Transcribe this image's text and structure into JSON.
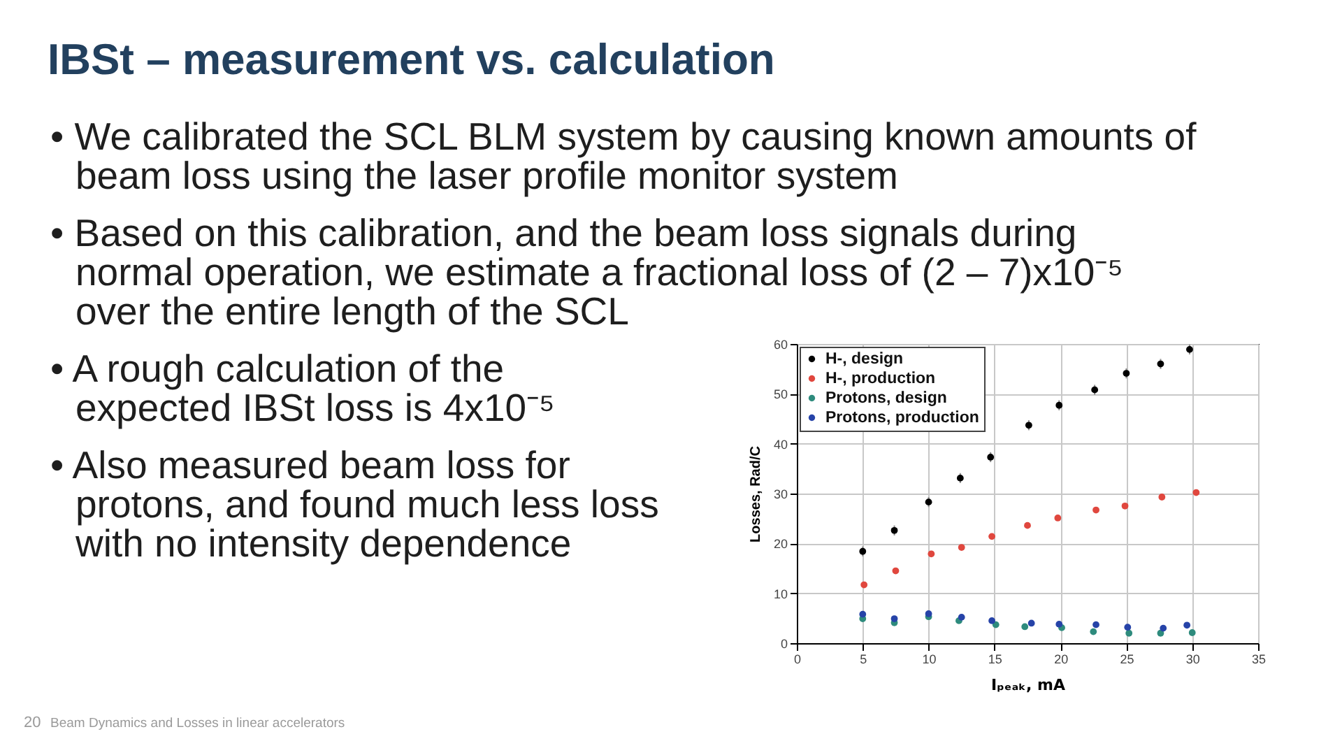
{
  "chart_data": {
    "type": "scatter",
    "title": "IBSt – measurement vs. calculation",
    "xlabel": "Iₚₑₐₖ, mA",
    "ylabel": "Losses, Rad/C",
    "xlim": [
      0,
      35
    ],
    "xticks": [
      0,
      5,
      10,
      15,
      20,
      25,
      30,
      35
    ],
    "ylim": [
      0,
      60
    ],
    "yticks": [
      0,
      10,
      20,
      30,
      40,
      50,
      60
    ],
    "grid": true,
    "legend": "top left",
    "marker": "circle",
    "series": [
      {
        "name": "H-, design",
        "color": "#000000",
        "x": [
          5.0,
          7.4,
          10.0,
          12.4,
          14.7,
          17.6,
          19.9,
          22.6,
          25.0,
          27.6,
          29.8
        ],
        "values": [
          18.4,
          22.6,
          28.3,
          33.1,
          37.3,
          43.7,
          47.7,
          50.8,
          54.1,
          56.0,
          58.9
        ],
        "errors": [
          1,
          1,
          1,
          1,
          1,
          1,
          1,
          1,
          1,
          1,
          1
        ]
      },
      {
        "name": "H-, production",
        "color": "#e0473e",
        "x": [
          5.1,
          7.5,
          10.2,
          12.5,
          14.8,
          17.5,
          19.8,
          22.7,
          24.9,
          27.7,
          30.3
        ],
        "values": [
          11.7,
          14.5,
          17.9,
          19.2,
          21.4,
          23.6,
          25.1,
          26.7,
          27.5,
          29.3,
          30.2
        ]
      },
      {
        "name": "Protons, design",
        "color": "#2e8b7d",
        "x": [
          5.0,
          7.4,
          10.0,
          12.3,
          15.1,
          17.3,
          20.1,
          22.5,
          25.2,
          27.6,
          30.0
        ],
        "values": [
          4.9,
          4.1,
          5.3,
          4.5,
          3.7,
          3.3,
          3.1,
          2.3,
          2.0,
          2.0,
          2.1
        ]
      },
      {
        "name": "Protons, production",
        "color": "#2643a8",
        "x": [
          5.0,
          7.4,
          10.0,
          12.5,
          14.8,
          17.8,
          19.9,
          22.7,
          25.1,
          27.8,
          29.6
        ],
        "values": [
          5.8,
          4.9,
          5.9,
          5.2,
          4.5,
          4.0,
          3.8,
          3.7,
          3.2,
          3.0,
          3.6
        ]
      }
    ],
    "annotations": [
      "• We calibrated the SCL BLM system by causing known amounts of\nbeam loss using the laser profile monitor system",
      "• Based on this calibration, and the beam loss signals during\nnormal operation, we estimate a fractional loss of (2 – 7)x10⁻⁵\nover the entire length of the SCL",
      "• A rough calculation of the\nexpected IBSt loss is 4x10⁻⁵",
      "• Also measured beam loss for\nprotons, and found much less loss\nwith no intensity dependence",
      "20",
      "Beam Dynamics and Losses in linear accelerators"
    ]
  }
}
